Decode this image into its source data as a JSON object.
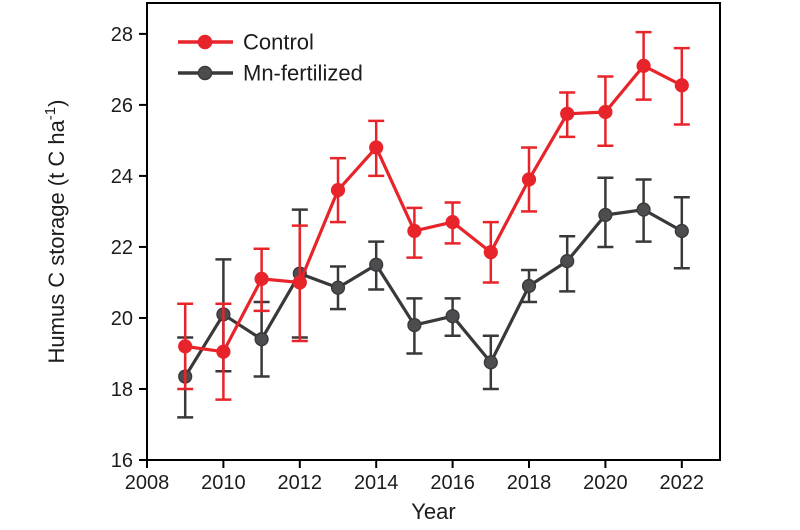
{
  "chart_data": {
    "type": "line",
    "title": "",
    "xlabel": "Year",
    "ylabel_pre": "Humus C storage (t C ha",
    "ylabel_sup": "-1",
    "ylabel_post": ")",
    "x": [
      2009,
      2010,
      2011,
      2012,
      2013,
      2014,
      2015,
      2016,
      2017,
      2018,
      2019,
      2020,
      2021,
      2022
    ],
    "xlim": [
      2008,
      2023
    ],
    "ylim": [
      16,
      28.87
    ],
    "xticks": [
      2008,
      2010,
      2012,
      2014,
      2016,
      2018,
      2020,
      2022
    ],
    "yticks": [
      16,
      18,
      20,
      22,
      24,
      26,
      28
    ],
    "grid": false,
    "legend_position": "top-left-inside",
    "axis_color": "#000000",
    "tick_label_color": "#2a2a2a",
    "series": [
      {
        "name": "Mn-fertilized",
        "color": "#39393b",
        "marker_fill": "#4d4d4f",
        "values": [
          18.35,
          20.1,
          19.4,
          21.25,
          20.85,
          21.5,
          19.8,
          20.05,
          18.75,
          20.9,
          21.6,
          22.9,
          23.05,
          22.45
        ],
        "err_lo": [
          17.2,
          18.5,
          18.35,
          19.45,
          20.25,
          20.8,
          19.0,
          19.5,
          18.0,
          20.45,
          20.75,
          22.0,
          22.15,
          21.4
        ],
        "err_hi": [
          19.45,
          21.65,
          20.45,
          23.05,
          21.45,
          22.15,
          20.55,
          20.55,
          19.5,
          21.35,
          22.3,
          23.95,
          23.9,
          23.4
        ]
      },
      {
        "name": "Control",
        "color": "#e8242b",
        "marker_fill": "#e8242b",
        "values": [
          19.2,
          19.05,
          21.1,
          21.0,
          23.6,
          24.8,
          22.45,
          22.7,
          21.85,
          23.9,
          25.75,
          25.8,
          27.1,
          26.55
        ],
        "err_lo": [
          18.0,
          17.7,
          20.2,
          19.35,
          22.7,
          24.0,
          21.7,
          22.1,
          21.0,
          23.0,
          25.1,
          24.85,
          26.15,
          25.45
        ],
        "err_hi": [
          20.4,
          20.4,
          21.95,
          22.6,
          24.5,
          25.55,
          23.1,
          23.25,
          22.7,
          24.8,
          26.35,
          26.8,
          28.05,
          27.6
        ]
      }
    ],
    "legend_order": [
      "Control",
      "Mn-fertilized"
    ]
  }
}
